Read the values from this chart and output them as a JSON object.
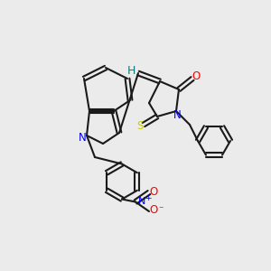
{
  "bg_color": "#ebebeb",
  "bond_color": "#1a1a1a",
  "atom_colors": {
    "O": "#ff0000",
    "N": "#0000ff",
    "S": "#cccc00",
    "H": "#008080"
  },
  "lw": 1.5,
  "dlw": 1.5,
  "fs": 8.5
}
